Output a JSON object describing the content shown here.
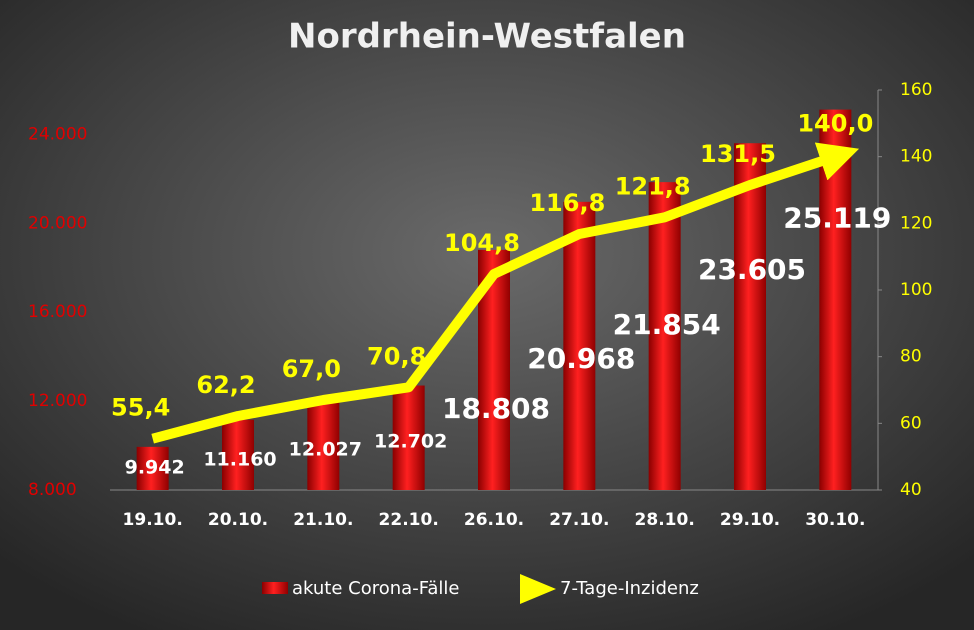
{
  "chart_data": {
    "type": "bar_line",
    "title": "Nordrhein-Westfalen",
    "categories": [
      "19.10.",
      "20.10.",
      "21.10.",
      "22.10.",
      "26.10.",
      "27.10.",
      "28.10.",
      "29.10.",
      "30.10."
    ],
    "series": [
      {
        "name": "akute Corona-Fälle",
        "type": "bar",
        "color": "#d40000",
        "values": [
          9942,
          11160,
          12027,
          12702,
          18808,
          20968,
          21854,
          23605,
          25119
        ],
        "value_labels": [
          "9.942",
          "11.160",
          "12.027",
          "12.702",
          "18.808",
          "20.968",
          "21.854",
          "23.605",
          "25.119"
        ]
      },
      {
        "name": "7-Tage-Inzidenz",
        "type": "line",
        "axis": "y2",
        "color": "#ffff00",
        "values": [
          55.4,
          62.2,
          67.0,
          70.8,
          104.8,
          116.8,
          121.8,
          131.5,
          140.0
        ],
        "value_labels": [
          "55,4",
          "62,2",
          "67,0",
          "70,8",
          "104,8",
          "116,8",
          "121,8",
          "131,5",
          "140,0"
        ]
      }
    ],
    "ylim": [
      8000,
      26000
    ],
    "yticks": [
      {
        "value": 8000,
        "label": "8.000"
      },
      {
        "value": 12000,
        "label": "12.000"
      },
      {
        "value": 16000,
        "label": "16.000"
      },
      {
        "value": 20000,
        "label": "20.000"
      },
      {
        "value": 24000,
        "label": "24.000"
      }
    ],
    "y2lim": [
      40,
      160
    ],
    "y2ticks": [
      40,
      60,
      80,
      100,
      120,
      140,
      160
    ]
  }
}
